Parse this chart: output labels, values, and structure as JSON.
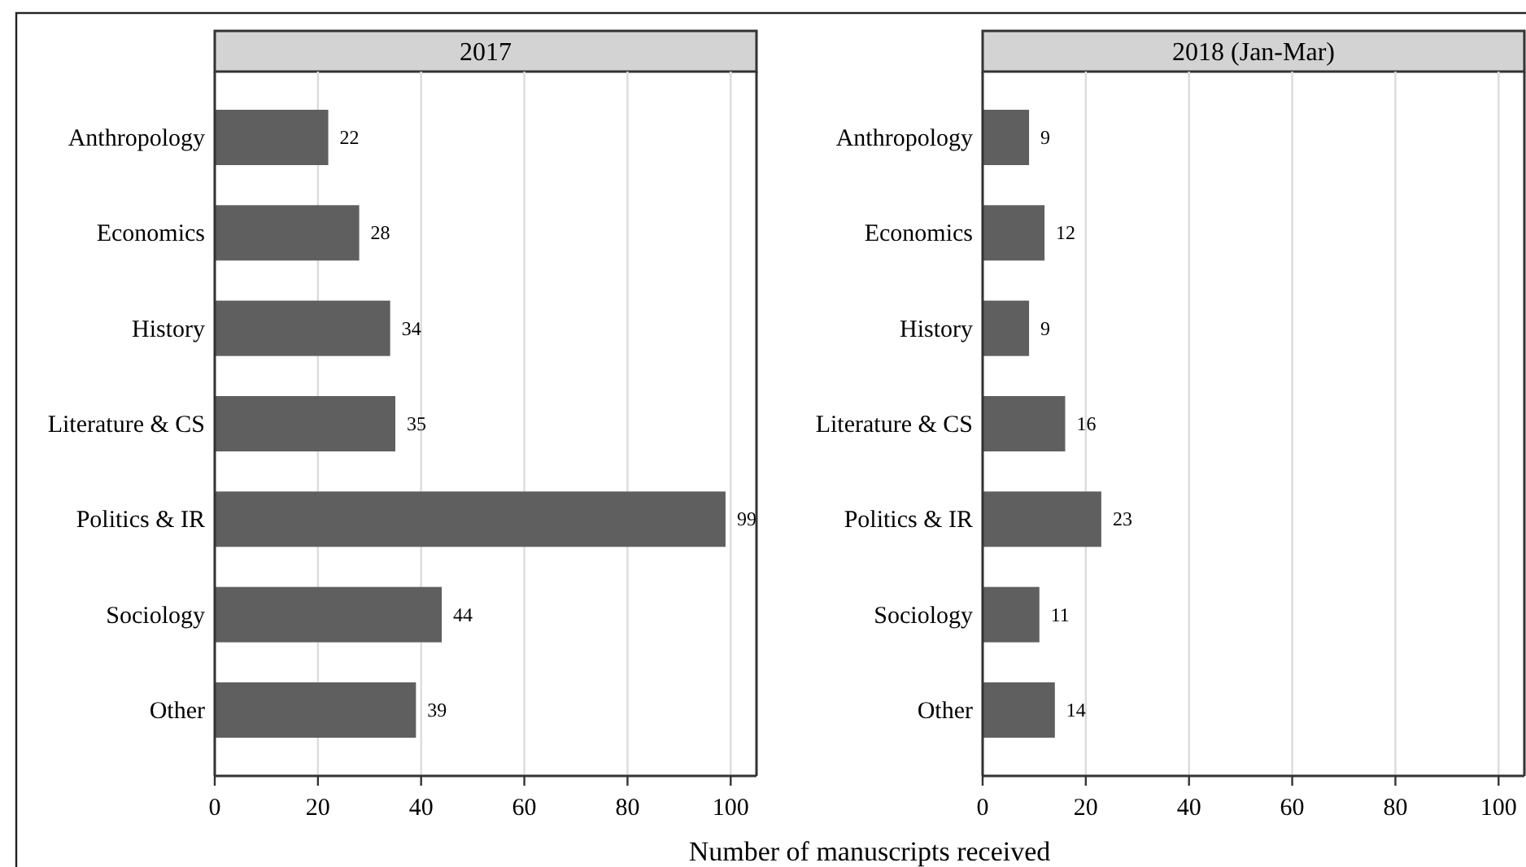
{
  "chart_data": [
    {
      "type": "bar",
      "orientation": "horizontal",
      "title": "2017",
      "xlabel": "Number of manuscripts received",
      "categories": [
        "Anthropology",
        "Economics",
        "History",
        "Literature & CS",
        "Politics & IR",
        "Sociology",
        "Other"
      ],
      "values": [
        22,
        28,
        34,
        35,
        99,
        44,
        39
      ],
      "color": "#5f5f5f",
      "xlim": [
        0,
        105
      ],
      "xticks": [
        0,
        20,
        40,
        60,
        80,
        100
      ],
      "grid": "x",
      "data_labels": true
    },
    {
      "type": "bar",
      "orientation": "horizontal",
      "title": "2018 (Jan-Mar)",
      "categories": [
        "Anthropology",
        "Economics",
        "History",
        "Literature & CS",
        "Politics & IR",
        "Sociology",
        "Other"
      ],
      "values": [
        9,
        12,
        9,
        16,
        23,
        11,
        14
      ],
      "color": "#5f5f5f",
      "xlim": [
        0,
        105
      ],
      "xticks": [
        0,
        20,
        40,
        60,
        80,
        100
      ],
      "grid": "x",
      "data_labels": true
    }
  ]
}
